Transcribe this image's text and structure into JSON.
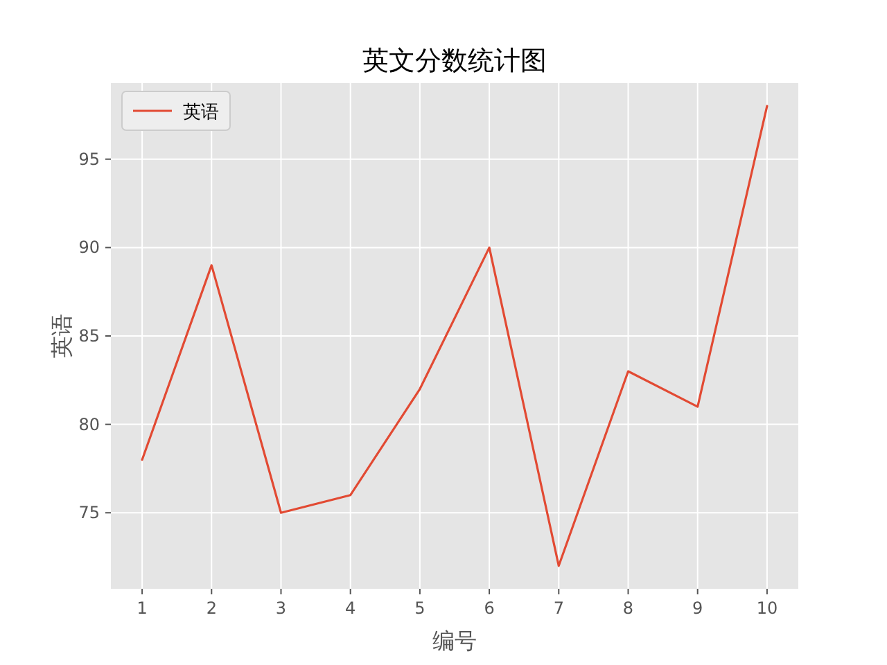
{
  "chart_data": {
    "type": "line",
    "title": "英文分数统计图",
    "xlabel": "编号",
    "ylabel": "英语",
    "x": [
      1,
      2,
      3,
      4,
      5,
      6,
      7,
      8,
      9,
      10
    ],
    "series": [
      {
        "name": "英语",
        "color": "#e24a33",
        "values": [
          78,
          89,
          75,
          76,
          82,
          90,
          72,
          83,
          81,
          98
        ]
      }
    ],
    "xlim": [
      0.55,
      10.45
    ],
    "ylim": [
      70.7,
      99.3
    ],
    "xticks": [
      1,
      2,
      3,
      4,
      5,
      6,
      7,
      8,
      9,
      10
    ],
    "yticks": [
      75,
      80,
      85,
      90,
      95
    ],
    "grid": true,
    "legend": "top left"
  }
}
